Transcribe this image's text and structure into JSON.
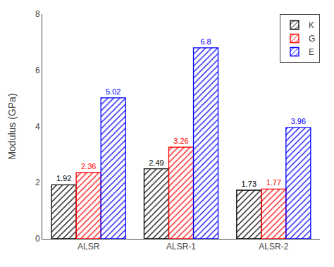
{
  "chart_data": {
    "type": "bar",
    "categories": [
      "ALSR",
      "ALSR-1",
      "ALSR-2"
    ],
    "series": [
      {
        "name": "K",
        "color": "#000000",
        "values": [
          1.92,
          2.49,
          1.73
        ]
      },
      {
        "name": "G",
        "color": "#ff0000",
        "values": [
          2.36,
          3.26,
          1.77
        ]
      },
      {
        "name": "E",
        "color": "#0000ff",
        "values": [
          5.02,
          6.8,
          3.96
        ]
      }
    ],
    "ylabel": "Modulus (GPa)",
    "ylim": [
      0,
      8
    ],
    "yticks": [
      0,
      2,
      4,
      6,
      8
    ],
    "data_labels": true,
    "legend": "upper right",
    "grid": false
  }
}
